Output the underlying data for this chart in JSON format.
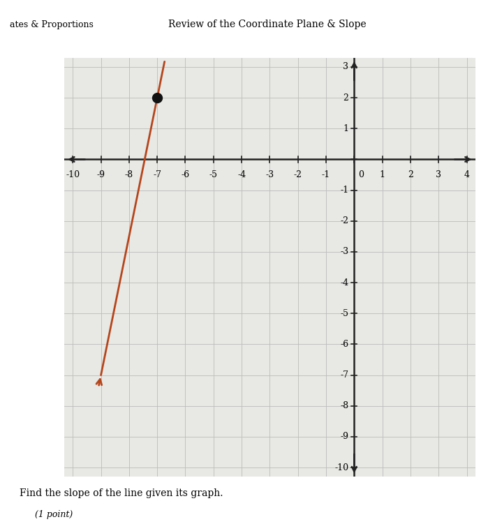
{
  "title_top": "Review of the Coordinate Plane & Slope",
  "subtitle_left": "ates & Proportions",
  "question": "Find the slope of the line given its graph.",
  "subquestion": "(1 point)",
  "x_min": -10,
  "x_max": 4,
  "y_min": -10,
  "y_max": 3,
  "line_point1": [
    -7,
    2
  ],
  "line_point2": [
    -9,
    -7
  ],
  "dot_point": [
    -7,
    2
  ],
  "line_color": "#b5451b",
  "dot_color": "#111111",
  "grid_color": "#bbbbbb",
  "axis_color": "#222222",
  "bg_color": "#e8e8e4",
  "header_bg": "#5bc4cc",
  "dot_size": 100,
  "font_size_labels": 9,
  "font_size_header": 9,
  "font_size_question": 10
}
